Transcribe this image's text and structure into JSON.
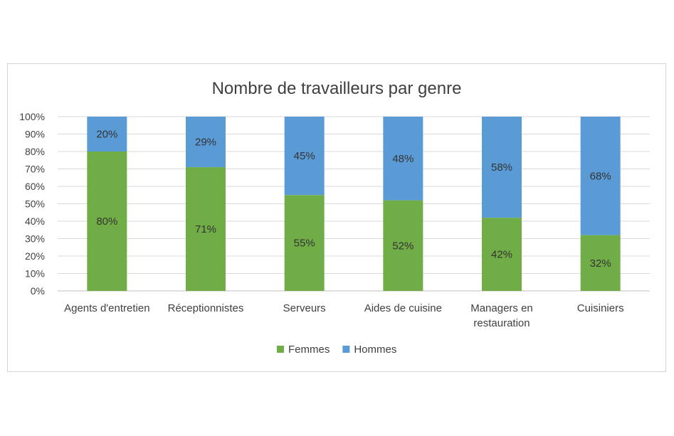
{
  "chart_data": {
    "type": "bar",
    "stacked": true,
    "title": "Nombre de travailleurs par genre",
    "categories": [
      [
        "Agents d'entretien"
      ],
      [
        "Réceptionnistes"
      ],
      [
        "Serveurs"
      ],
      [
        "Aides de cuisine"
      ],
      [
        "Managers en",
        "restauration"
      ],
      [
        "Cuisiniers"
      ]
    ],
    "series": [
      {
        "name": "Femmes",
        "color": "#70ad47",
        "values": [
          80,
          71,
          55,
          52,
          42,
          32
        ],
        "labels": [
          "80%",
          "71%",
          "55%",
          "52%",
          "42%",
          "32%"
        ]
      },
      {
        "name": "Hommes",
        "color": "#5b9bd5",
        "values": [
          20,
          29,
          45,
          48,
          58,
          68
        ],
        "labels": [
          "20%",
          "29%",
          "45%",
          "48%",
          "58%",
          "68%"
        ]
      }
    ],
    "ylim": [
      0,
      100
    ],
    "yticks": [
      "0%",
      "10%",
      "20%",
      "30%",
      "40%",
      "50%",
      "60%",
      "70%",
      "80%",
      "90%",
      "100%"
    ],
    "grid": true,
    "legend_position": "bottom"
  }
}
